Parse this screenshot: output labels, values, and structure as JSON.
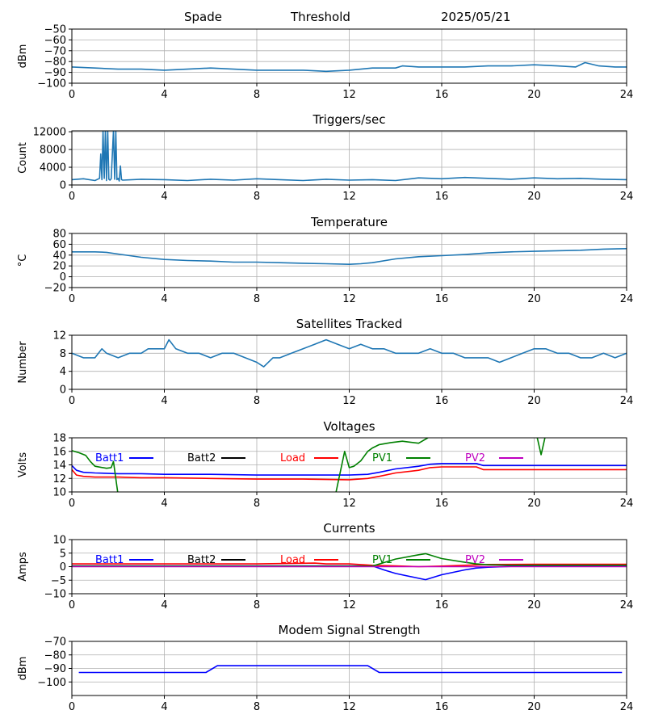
{
  "header": {
    "station": "Spade",
    "trigger_mode": "Threshold",
    "date": "2025/05/21"
  },
  "styling": {
    "grid_color": "#b0b0b0",
    "default_line_color": "#1f77b4",
    "batt1_color": "#0000ff",
    "batt2_color": "#000000",
    "load_color": "#ff0000",
    "pv1_color": "#008000",
    "pv2_color": "#bf00bf",
    "modem_color": "#0000ff"
  },
  "chart_data": [
    {
      "id": "rssi",
      "type": "line",
      "title": "",
      "xlabel": "",
      "ylabel": "dBm",
      "xlim": [
        0,
        24
      ],
      "ylim": [
        -100,
        -50
      ],
      "xticks": [
        "0",
        "4",
        "8",
        "12",
        "16",
        "20",
        "24"
      ],
      "yticks": [
        "−50",
        "−60",
        "−70",
        "−80",
        "−90",
        "−100"
      ],
      "grid": true,
      "series": [
        {
          "color": "#1f77b4",
          "x": [
            0,
            1,
            2,
            3,
            4,
            5,
            6,
            7,
            8,
            9,
            10,
            11,
            12,
            13,
            14,
            14.3,
            15,
            16,
            17,
            18,
            19,
            20,
            21,
            21.8,
            22.2,
            22.8,
            23.5,
            24
          ],
          "y": [
            -85,
            -86,
            -87,
            -87,
            -88,
            -87,
            -86,
            -87,
            -88,
            -88,
            -88,
            -89,
            -88,
            -86,
            -86,
            -84,
            -85,
            -85,
            -85,
            -84,
            -84,
            -83,
            -84,
            -85,
            -81,
            -84,
            -85,
            -85
          ]
        }
      ]
    },
    {
      "id": "triggers",
      "type": "line",
      "title": "Triggers/sec",
      "xlabel": "",
      "ylabel": "Count",
      "xlim": [
        0,
        24
      ],
      "ylim": [
        0,
        12200
      ],
      "xticks": [
        "0",
        "4",
        "8",
        "12",
        "16",
        "20",
        "24"
      ],
      "yticks": [
        "0",
        "4000",
        "8000",
        "12000"
      ],
      "grid": true,
      "series": [
        {
          "color": "#1f77b4",
          "x": [
            0,
            0.5,
            1.0,
            1.2,
            1.25,
            1.3,
            1.35,
            1.4,
            1.45,
            1.5,
            1.55,
            1.6,
            1.65,
            1.7,
            1.8,
            1.85,
            1.9,
            1.95,
            2.0,
            2.05,
            2.1,
            2.15,
            2.2,
            3,
            4,
            5,
            6,
            7,
            8,
            9,
            10,
            11,
            12,
            13,
            14,
            15,
            16,
            17,
            18,
            19,
            20,
            21,
            22,
            23,
            24
          ],
          "y": [
            1200,
            1400,
            1000,
            1500,
            7000,
            1200,
            12200,
            1500,
            12200,
            1000,
            12200,
            1300,
            1100,
            1400,
            12200,
            1300,
            12200,
            1200,
            1500,
            900,
            4300,
            1200,
            1100,
            1300,
            1200,
            1000,
            1300,
            1100,
            1400,
            1200,
            1000,
            1300,
            1100,
            1200,
            1000,
            1600,
            1400,
            1700,
            1500,
            1300,
            1600,
            1400,
            1500,
            1300,
            1200
          ]
        }
      ]
    },
    {
      "id": "temperature",
      "type": "line",
      "title": "Temperature",
      "xlabel": "",
      "ylabel": "°C",
      "xlim": [
        0,
        24
      ],
      "ylim": [
        -20,
        80
      ],
      "xticks": [
        "0",
        "4",
        "8",
        "12",
        "16",
        "20",
        "24"
      ],
      "yticks": [
        "−20",
        "0",
        "20",
        "40",
        "60",
        "80"
      ],
      "grid": true,
      "series": [
        {
          "color": "#1f77b4",
          "x": [
            0,
            1,
            1.5,
            2,
            3,
            4,
            5,
            6,
            7,
            8,
            9,
            10,
            11,
            12,
            12.5,
            13,
            14,
            15,
            16,
            17,
            18,
            19,
            20,
            21,
            22,
            23,
            24
          ],
          "y": [
            46,
            46,
            45,
            42,
            36,
            32,
            30,
            29,
            27,
            27,
            26,
            25,
            24,
            23,
            24,
            26,
            33,
            37,
            39,
            41,
            44,
            46,
            47,
            48,
            49,
            51,
            52
          ]
        }
      ]
    },
    {
      "id": "satellites",
      "type": "line",
      "title": "Satellites Tracked",
      "xlabel": "",
      "ylabel": "Number",
      "xlim": [
        0,
        24
      ],
      "ylim": [
        0,
        12
      ],
      "xticks": [
        "0",
        "4",
        "8",
        "12",
        "16",
        "20",
        "24"
      ],
      "yticks": [
        "0",
        "4",
        "8",
        "12"
      ],
      "grid": true,
      "series": [
        {
          "color": "#1f77b4",
          "x": [
            0,
            0.5,
            1,
            1.3,
            1.5,
            2,
            2.5,
            3,
            3.3,
            4,
            4.2,
            4.5,
            5,
            5.5,
            6,
            6.5,
            7,
            7.5,
            8,
            8.3,
            8.7,
            9,
            9.5,
            10,
            10.5,
            11,
            11.5,
            12,
            12.5,
            13,
            13.5,
            14,
            14.5,
            15,
            15.5,
            16,
            16.5,
            17,
            17.5,
            18,
            18.5,
            19,
            19.5,
            20,
            20.5,
            21,
            21.5,
            22,
            22.5,
            23,
            23.5,
            24
          ],
          "y": [
            8,
            7,
            7,
            9,
            8,
            7,
            8,
            8,
            9,
            9,
            11,
            9,
            8,
            8,
            7,
            8,
            8,
            7,
            6,
            5,
            7,
            7,
            8,
            9,
            10,
            11,
            10,
            9,
            10,
            9,
            9,
            8,
            8,
            8,
            9,
            8,
            8,
            7,
            7,
            7,
            6,
            7,
            8,
            9,
            9,
            8,
            8,
            7,
            7,
            8,
            7,
            8
          ]
        }
      ]
    },
    {
      "id": "voltages",
      "type": "line",
      "title": "Voltages",
      "xlabel": "",
      "ylabel": "Volts",
      "xlim": [
        0,
        24
      ],
      "ylim": [
        10,
        18
      ],
      "xticks": [
        "0",
        "4",
        "8",
        "12",
        "16",
        "20",
        "24"
      ],
      "yticks": [
        "10",
        "12",
        "14",
        "16",
        "18"
      ],
      "grid": true,
      "legend": [
        "Batt1",
        "Batt2",
        "Load",
        "PV1",
        "PV2"
      ],
      "series": [
        {
          "name": "Batt1",
          "color": "#0000ff",
          "x": [
            0,
            0.2,
            0.5,
            1,
            2,
            3,
            4,
            6,
            8,
            10,
            12,
            12.8,
            13.3,
            14,
            15,
            15.5,
            16,
            17,
            17.5,
            17.8,
            18,
            20,
            24
          ],
          "y": [
            13.9,
            13.2,
            12.9,
            12.8,
            12.7,
            12.7,
            12.6,
            12.6,
            12.5,
            12.5,
            12.5,
            12.6,
            12.9,
            13.4,
            13.8,
            14.1,
            14.2,
            14.2,
            14.2,
            13.9,
            13.9,
            13.9,
            13.9
          ]
        },
        {
          "name": "Load",
          "color": "#ff0000",
          "x": [
            0,
            0.2,
            0.5,
            1,
            2,
            3,
            4,
            6,
            8,
            10,
            12,
            12.8,
            13.3,
            14,
            15,
            15.5,
            16,
            17,
            17.5,
            17.8,
            18,
            20,
            24
          ],
          "y": [
            13.3,
            12.5,
            12.3,
            12.2,
            12.2,
            12.1,
            12.1,
            12.0,
            11.9,
            11.9,
            11.8,
            12.0,
            12.3,
            12.8,
            13.2,
            13.6,
            13.7,
            13.7,
            13.7,
            13.3,
            13.3,
            13.3,
            13.3
          ]
        },
        {
          "name": "PV1",
          "color": "#008000",
          "x": [
            0,
            0.3,
            0.6,
            0.8,
            1.0,
            1.5,
            1.7,
            1.8,
            2.0,
            11.4,
            11.8,
            12.0,
            12.2,
            12.5,
            12.8,
            13.0,
            13.3,
            13.8,
            14.3,
            15.0,
            15.4,
            15.5,
            20.1,
            20.3,
            20.5
          ],
          "y": [
            16.1,
            15.8,
            15.4,
            14.5,
            13.8,
            13.5,
            13.6,
            14.5,
            9.5,
            9.5,
            16.0,
            13.6,
            13.8,
            14.6,
            16.0,
            16.5,
            17.0,
            17.3,
            17.5,
            17.2,
            18.0,
            18.5,
            18.5,
            15.5,
            18.5
          ]
        }
      ]
    },
    {
      "id": "currents",
      "type": "line",
      "title": "Currents",
      "xlabel": "",
      "ylabel": "Amps",
      "xlim": [
        0,
        24
      ],
      "ylim": [
        -10,
        10
      ],
      "xticks": [
        "0",
        "4",
        "8",
        "12",
        "16",
        "20",
        "24"
      ],
      "yticks": [
        "−10",
        "−5",
        "0",
        "5",
        "10"
      ],
      "grid": true,
      "legend": [
        "Batt1",
        "Batt2",
        "Load",
        "PV1",
        "PV2"
      ],
      "series": [
        {
          "name": "Batt1",
          "color": "#0000ff",
          "x": [
            0,
            13,
            13.5,
            14,
            15,
            15.3,
            16,
            17,
            17.5,
            18,
            19,
            24
          ],
          "y": [
            0.3,
            0.3,
            -1.2,
            -2.5,
            -4.3,
            -4.8,
            -3.0,
            -1.2,
            -0.5,
            -0.2,
            0.1,
            0.2
          ]
        },
        {
          "name": "Load",
          "color": "#ff0000",
          "x": [
            0,
            4,
            8,
            10.5,
            11,
            12,
            13,
            14,
            15,
            16,
            17,
            18,
            20,
            24
          ],
          "y": [
            1.0,
            1.0,
            1.0,
            1.3,
            1.0,
            1.0,
            0.5,
            0.3,
            0.0,
            0.2,
            0.5,
            0.8,
            0.9,
            0.9
          ]
        },
        {
          "name": "PV1",
          "color": "#008000",
          "x": [
            0,
            13,
            13.5,
            14,
            15,
            15.3,
            16,
            17,
            17.5,
            18,
            19,
            24
          ],
          "y": [
            0.2,
            0.2,
            1.5,
            2.8,
            4.4,
            4.8,
            3.0,
            1.6,
            1.0,
            0.7,
            0.5,
            0.5
          ]
        },
        {
          "name": "PV2",
          "color": "#bf00bf",
          "x": [
            0,
            24
          ],
          "y": [
            0,
            0
          ]
        }
      ]
    },
    {
      "id": "modem",
      "type": "line",
      "title": "Modem Signal Strength",
      "xlabel": "",
      "ylabel": "dBm",
      "xlim": [
        0,
        24
      ],
      "ylim": [
        -110,
        -70
      ],
      "xticks": [
        "0",
        "4",
        "8",
        "12",
        "16",
        "20",
        "24"
      ],
      "yticks": [
        "−70",
        "−80",
        "−90",
        "−100"
      ],
      "grid": true,
      "series": [
        {
          "color": "#0000ff",
          "x": [
            0.3,
            5.8,
            6.3,
            12.8,
            13.3,
            23.8
          ],
          "y": [
            -93,
            -93,
            -88,
            -88,
            -93,
            -93
          ]
        }
      ]
    }
  ]
}
